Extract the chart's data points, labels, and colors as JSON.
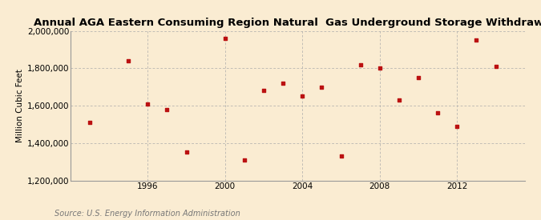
{
  "title": "Annual AGA Eastern Consuming Region Natural  Gas Underground Storage Withdrawals",
  "ylabel": "Million Cubic Feet",
  "source": "Source: U.S. Energy Information Administration",
  "background_color": "#faecd2",
  "plot_background_color": "#faecd2",
  "marker_color": "#bb1111",
  "years": [
    1993,
    1995,
    1996,
    1997,
    1998,
    2000,
    2001,
    2002,
    2003,
    2004,
    2005,
    2006,
    2007,
    2008,
    2009,
    2010,
    2011,
    2012,
    2013,
    2014
  ],
  "values": [
    1510000,
    1840000,
    1610000,
    1580000,
    1350000,
    1960000,
    1310000,
    1680000,
    1720000,
    1650000,
    1700000,
    1330000,
    1820000,
    1800000,
    1630000,
    1750000,
    1560000,
    1490000,
    1950000,
    1810000
  ],
  "ylim": [
    1200000,
    2000000
  ],
  "yticks": [
    1200000,
    1400000,
    1600000,
    1800000,
    2000000
  ],
  "xticks": [
    1996,
    2000,
    2004,
    2008,
    2012
  ],
  "xlim": [
    1992,
    2015.5
  ],
  "grid_color": "#aaaaaa",
  "title_fontsize": 9.5,
  "ylabel_fontsize": 7.5,
  "tick_fontsize": 7.5,
  "source_fontsize": 7
}
